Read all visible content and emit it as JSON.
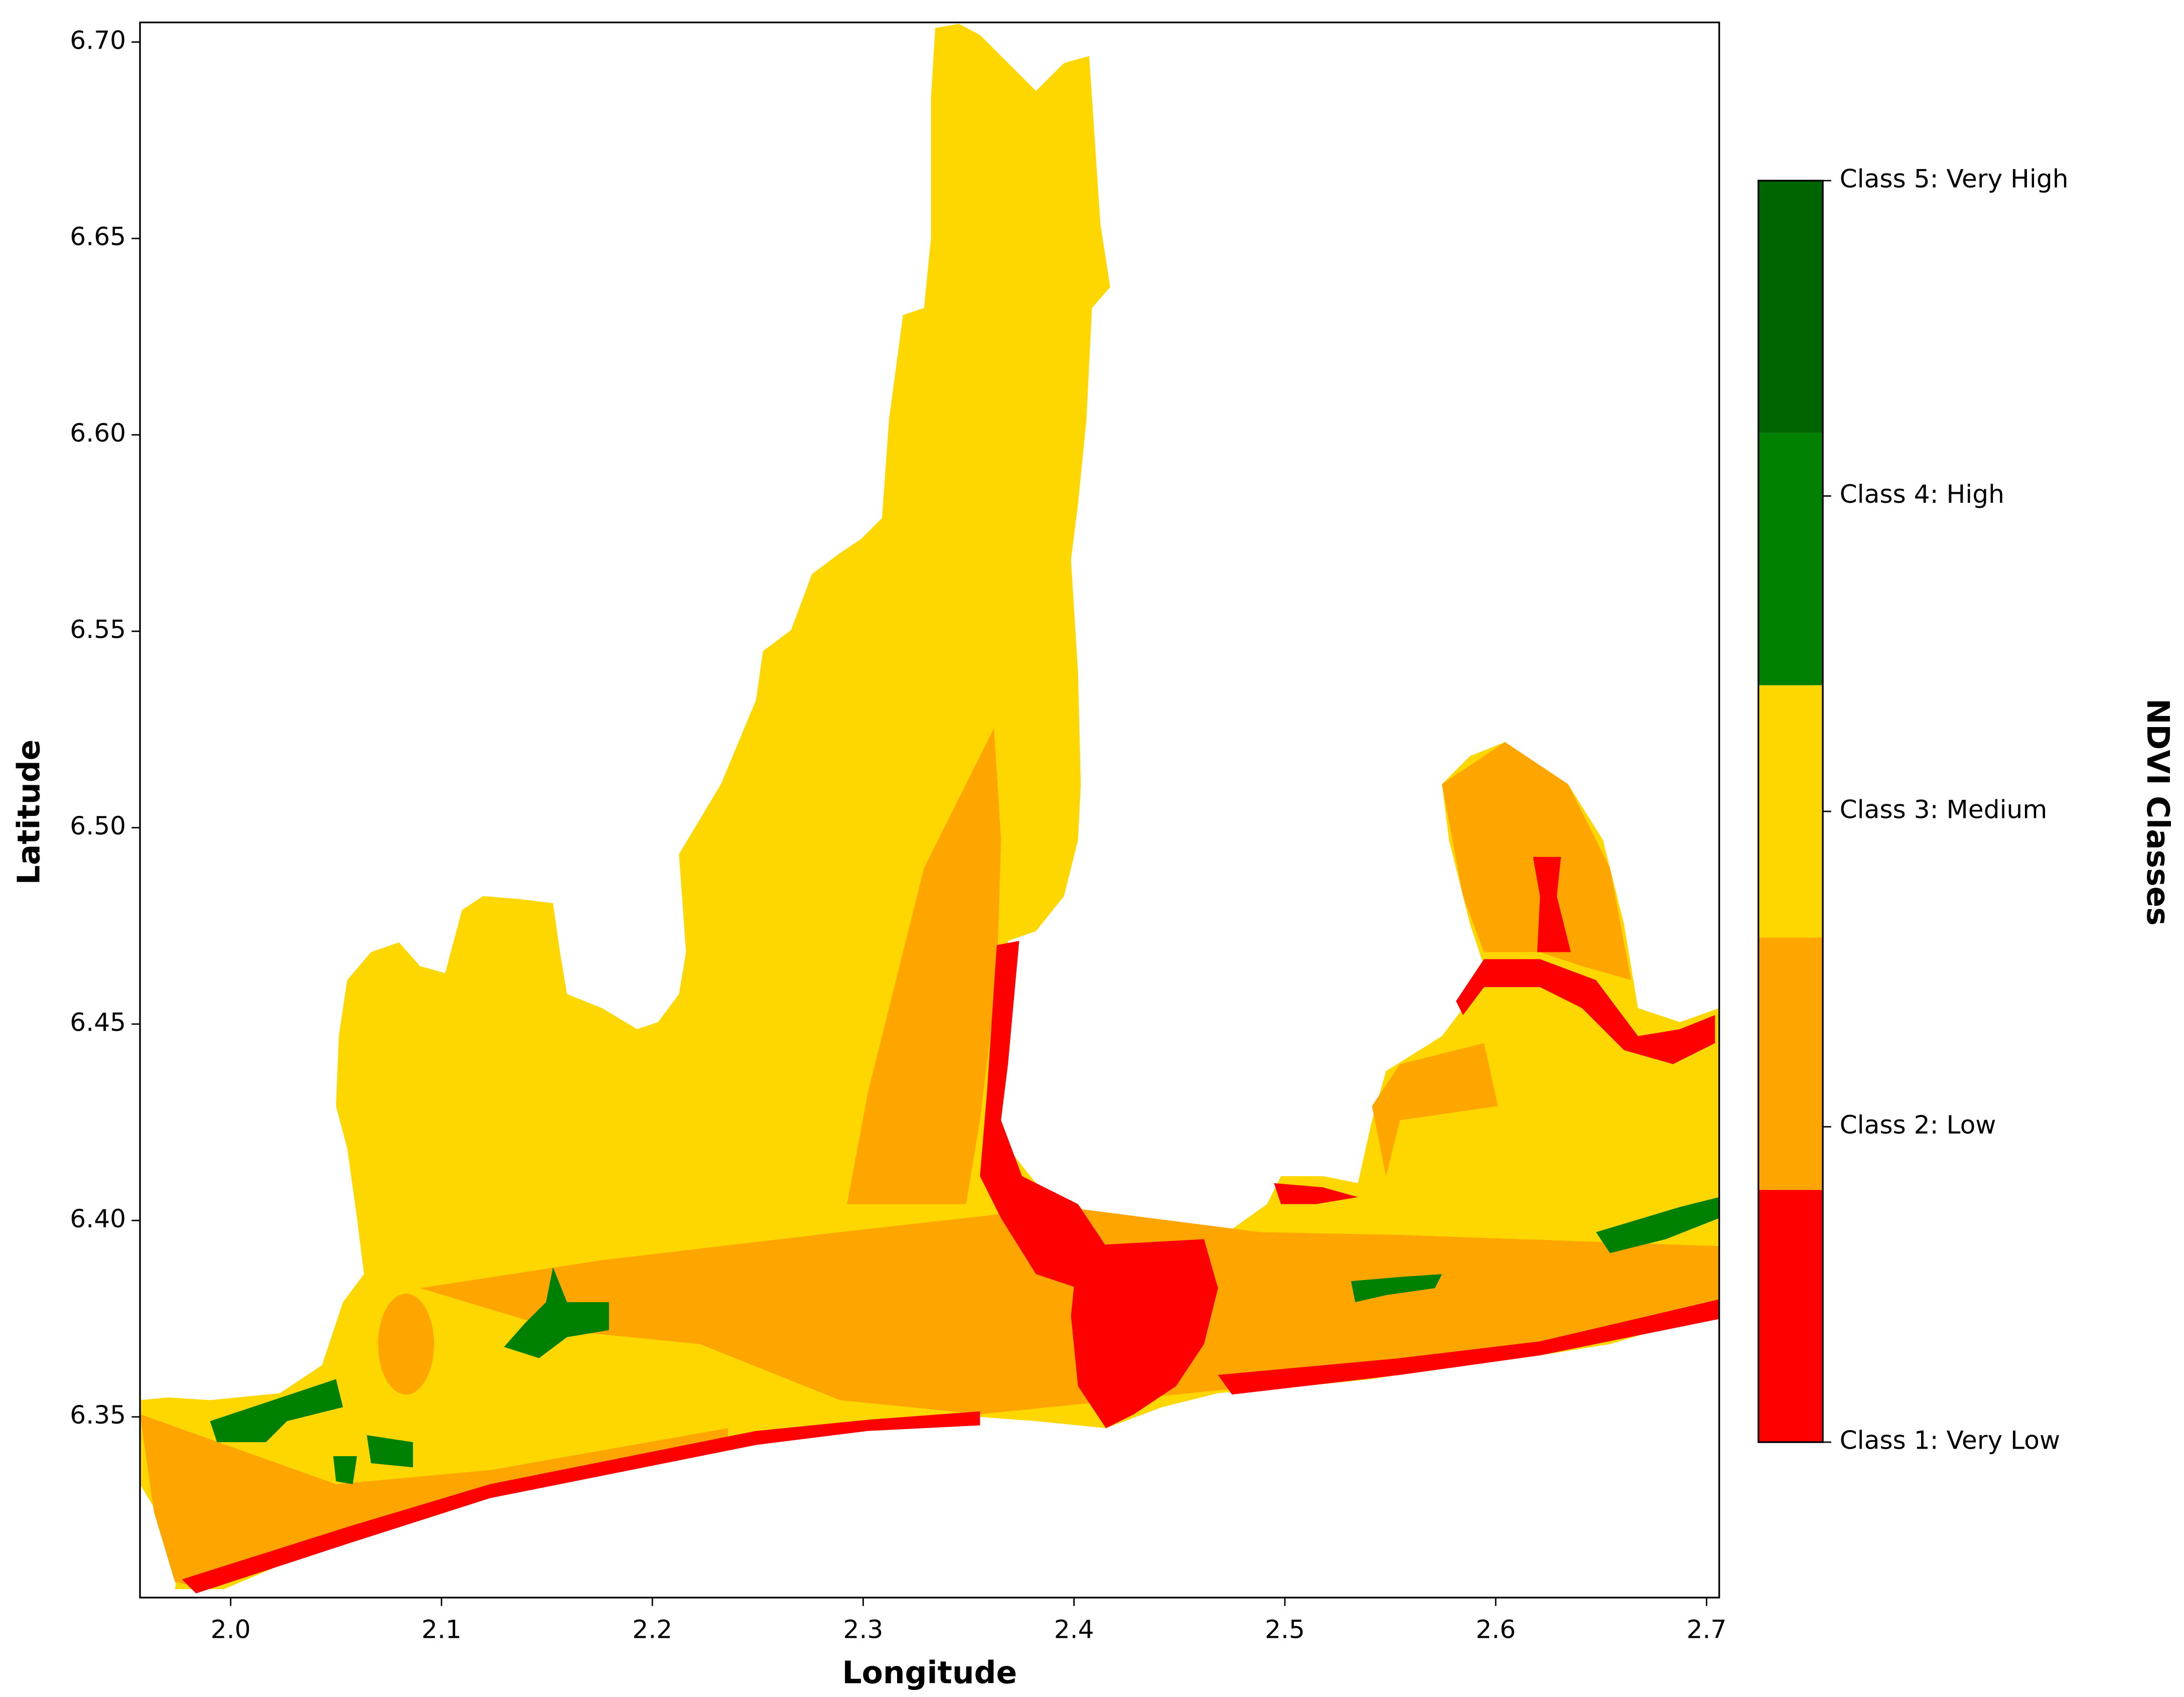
{
  "chart_data": {
    "type": "map",
    "xlabel": "Longitude",
    "ylabel": "Latitude",
    "xlim": [
      1.957,
      2.706
    ],
    "ylim": [
      6.304,
      6.705
    ],
    "xticks": [
      {
        "value": 2,
        "label": "2.0"
      },
      2.1,
      2.2,
      2.3,
      2.4,
      2.5,
      2.6,
      2.7
    ],
    "yticks": [
      6.35,
      {
        "value": 6.4,
        "label": "6.40"
      },
      6.45,
      {
        "value": 6.5,
        "label": "6.50"
      },
      6.55,
      {
        "value": 6.6,
        "label": "6.60"
      },
      6.65,
      {
        "value": 6.7,
        "label": "6.70"
      }
    ],
    "colorbar": {
      "title": "NDVI Classes",
      "classes": [
        {
          "label": "Class 1: Very Low",
          "color": "#ff0000"
        },
        {
          "label": "Class 2: Low",
          "color": "#ffa500"
        },
        {
          "label": "Class 3: Medium",
          "color": "#ffd700"
        },
        {
          "label": "Class 4: High",
          "color": "#008000"
        },
        {
          "label": "Class 5: Very High",
          "color": "#006400"
        }
      ]
    }
  }
}
